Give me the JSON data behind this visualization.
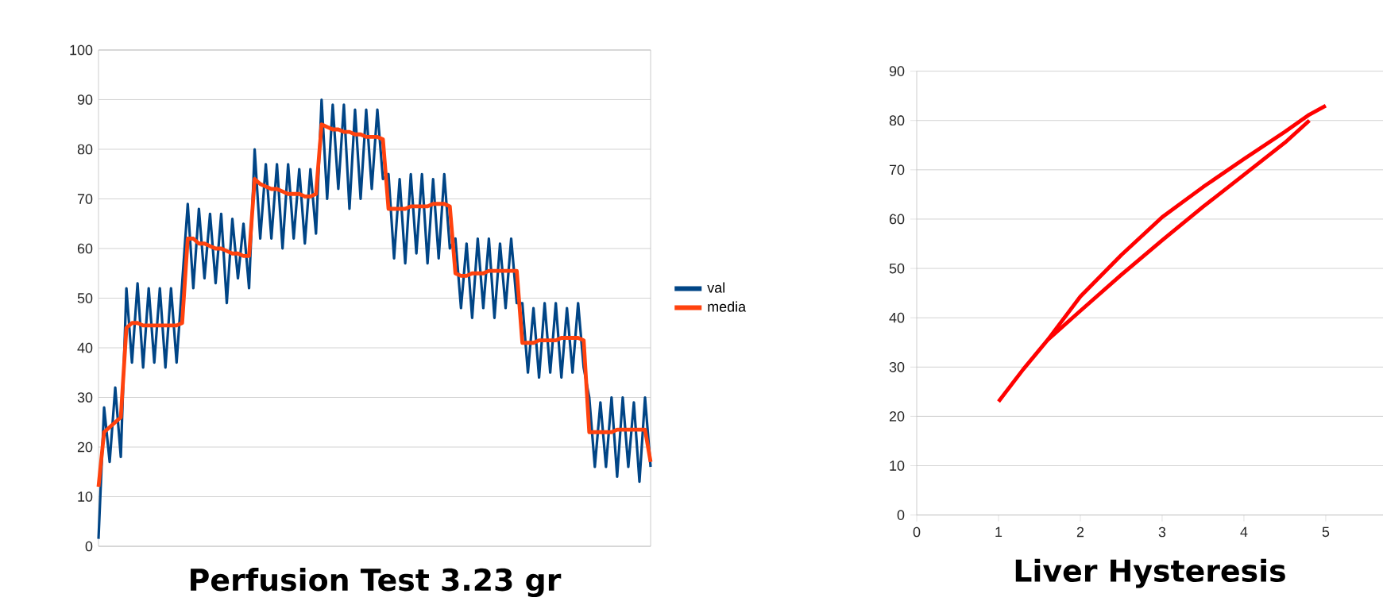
{
  "chart_data": [
    {
      "type": "line",
      "title": "Perfusion Test  3.23 gr",
      "categories": [
        null,
        null,
        null,
        null,
        null,
        null,
        null,
        null,
        null,
        null,
        null,
        null,
        null,
        null,
        null,
        null,
        null,
        null,
        null,
        null,
        null,
        null,
        null,
        null,
        null,
        null,
        null,
        null,
        null,
        null,
        null,
        null,
        null,
        null,
        null,
        null,
        null,
        null,
        null,
        null,
        null,
        null,
        null,
        null,
        null,
        null,
        null,
        null,
        null,
        null,
        null,
        null,
        null,
        null,
        null,
        null,
        null,
        null,
        null,
        null,
        null,
        null,
        null,
        null,
        null,
        null,
        null,
        null,
        null,
        null,
        null,
        null,
        null,
        null,
        null,
        null,
        null,
        null,
        null,
        null,
        null,
        null,
        null,
        null,
        null,
        null,
        null,
        null,
        null,
        null,
        null,
        null,
        null,
        null,
        null,
        null,
        null,
        null,
        null,
        null
      ],
      "series": [
        {
          "name": "val",
          "color": "#004586",
          "values": [
            1.5,
            28,
            17,
            32,
            18,
            52,
            37,
            53,
            36,
            52,
            37,
            52,
            36,
            52,
            37,
            53,
            69,
            52,
            68,
            54,
            67,
            53,
            67,
            49,
            66,
            54,
            65,
            52,
            80,
            62,
            77,
            62,
            77,
            60,
            77,
            62,
            76,
            61,
            76,
            63,
            90,
            70,
            89,
            72,
            89,
            68,
            88,
            70,
            88,
            72,
            88,
            74,
            75,
            58,
            74,
            57,
            75,
            59,
            75,
            57,
            74,
            58,
            75,
            60,
            62,
            48,
            61,
            46,
            62,
            48,
            62,
            46,
            61,
            48,
            62,
            49,
            49,
            35,
            48,
            34,
            49,
            35,
            49,
            34,
            48,
            35,
            49,
            36,
            30,
            16,
            29,
            16,
            30,
            14,
            30,
            16,
            29,
            13,
            30,
            16
          ]
        },
        {
          "name": "media",
          "color": "#ff420e",
          "values": [
            12,
            23,
            24,
            25,
            26,
            44,
            45,
            45,
            44.5,
            44.5,
            44.5,
            44.5,
            44.5,
            44.5,
            44.5,
            45,
            62,
            62,
            61,
            61,
            60.5,
            60,
            60,
            59.5,
            59,
            59,
            58.5,
            58.5,
            74,
            73,
            72.5,
            72,
            72,
            71.5,
            71,
            71,
            71,
            70.5,
            70.5,
            71,
            85,
            84.5,
            84,
            84,
            83.5,
            83.5,
            83,
            83,
            82.5,
            82.5,
            82.5,
            82,
            68,
            68,
            68,
            68,
            68.5,
            68.5,
            68.5,
            68.5,
            69,
            69,
            69,
            68.5,
            55,
            54.5,
            54.5,
            55,
            55,
            55,
            55.5,
            55.5,
            55.5,
            55.5,
            55.5,
            55.5,
            41,
            41,
            41,
            41.5,
            41.5,
            41.5,
            41.5,
            42,
            42,
            42,
            42,
            41.5,
            23,
            23,
            23,
            23,
            23,
            23.5,
            23.5,
            23.5,
            23.5,
            23.5,
            23.5,
            17
          ]
        }
      ],
      "ylim": [
        0,
        100
      ],
      "yticks": [
        0,
        10,
        20,
        30,
        40,
        50,
        60,
        70,
        80,
        90,
        100
      ],
      "grid": "y",
      "legend": "right",
      "tick_labels": "y"
    },
    {
      "type": "line",
      "title": "Liver Hysteresis",
      "series": [
        {
          "color": "#ff0000",
          "x": [
            1,
            1.3,
            1.6,
            2,
            2.5,
            3,
            3.5,
            4,
            4.5,
            4.8,
            5
          ],
          "values": [
            23,
            29.5,
            35.5,
            44.3,
            52.7,
            60.4,
            66.5,
            72.2,
            77.7,
            81.2,
            83
          ]
        },
        {
          "color": "#ff0000",
          "x": [
            1.6,
            2,
            2.5,
            3,
            3.5,
            4,
            4.5,
            4.8
          ],
          "values": [
            35.5,
            41.4,
            48.7,
            55.7,
            62.5,
            69,
            75.5,
            80
          ]
        }
      ],
      "xlim": [
        0,
        5.7
      ],
      "xticks": [
        0,
        1,
        2,
        3,
        4,
        5
      ],
      "ylim": [
        0,
        90
      ],
      "yticks": [
        0,
        10,
        20,
        30,
        40,
        50,
        60,
        70,
        80,
        90
      ],
      "grid": "y"
    }
  ]
}
